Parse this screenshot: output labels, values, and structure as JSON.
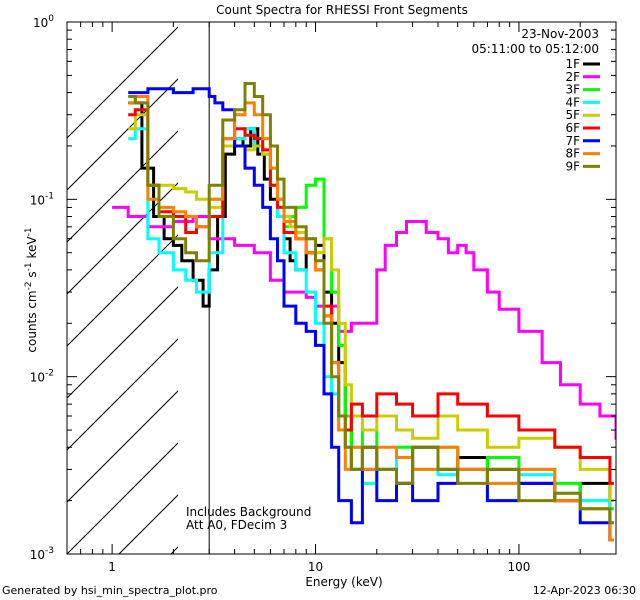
{
  "chart_data": {
    "type": "line",
    "title": "Count Spectra for RHESSI Front Segments",
    "xlabel": "Energy (keV)",
    "ylabel": "counts cm-2 s-1 keV-1",
    "xscale": "log",
    "yscale": "log",
    "xlim": [
      0.6,
      300
    ],
    "ylim": [
      0.001,
      1
    ],
    "x_ticks": [
      {
        "value": 1,
        "label": "1"
      },
      {
        "value": 10,
        "label": "10"
      },
      {
        "value": 100,
        "label": "100"
      }
    ],
    "y_ticks": [
      {
        "value": 1,
        "base": "10",
        "exp": "0"
      },
      {
        "value": 0.1,
        "base": "10",
        "exp": "-1"
      },
      {
        "value": 0.01,
        "base": "10",
        "exp": "-2"
      },
      {
        "value": 0.001,
        "base": "10",
        "exp": "-3"
      }
    ],
    "date": "23-Nov-2003",
    "time_range": "05:11:00 to 05:12:00",
    "hatched_below_keV": 3,
    "annotations": [
      "Includes Background",
      "Att A0, FDecim 3"
    ],
    "series": [
      {
        "name": "1F",
        "color": "#000000",
        "x": [
          1.2,
          1.4,
          1.6,
          1.8,
          2.0,
          2.2,
          2.5,
          2.8,
          3.0,
          3.3,
          3.6,
          4.0,
          4.4,
          4.8,
          5.2,
          5.6,
          6.0,
          6.5,
          7.0,
          7.5,
          8.0,
          9.0,
          10.0,
          11.0,
          12.0,
          13.0,
          14.0,
          15.0,
          17.0,
          20.0,
          25.0,
          30.0,
          40.0,
          50.0,
          70.0,
          100.0,
          150.0,
          200.0,
          280.0
        ],
        "y": [
          0.35,
          0.15,
          0.08,
          0.06,
          0.055,
          0.045,
          0.035,
          0.025,
          0.04,
          0.08,
          0.18,
          0.22,
          0.2,
          0.25,
          0.18,
          0.13,
          0.1,
          0.08,
          0.06,
          0.045,
          0.04,
          0.05,
          0.055,
          0.03,
          0.02,
          0.012,
          0.006,
          0.003,
          0.004,
          0.003,
          0.0025,
          0.004,
          0.003,
          0.0035,
          0.003,
          0.0025,
          0.002,
          0.0025,
          0.0012
        ]
      },
      {
        "name": "2F",
        "color": "#ff00ff",
        "x": [
          1.0,
          1.2,
          1.5,
          2.0,
          2.5,
          3.0,
          3.5,
          4.0,
          5.0,
          6.0,
          7.0,
          8.0,
          9.0,
          10.0,
          11.0,
          12.0,
          13.0,
          15.0,
          17.0,
          20.0,
          22.0,
          25.0,
          28.0,
          30.0,
          35.0,
          40.0,
          45.0,
          50.0,
          55.0,
          60.0,
          70.0,
          80.0,
          100.0,
          130.0,
          160.0,
          200.0,
          250.0,
          300.0
        ],
        "y": [
          0.09,
          0.08,
          0.07,
          0.075,
          0.08,
          0.06,
          0.06,
          0.055,
          0.05,
          0.035,
          0.03,
          0.03,
          0.028,
          0.025,
          0.022,
          0.025,
          0.018,
          0.02,
          0.02,
          0.04,
          0.055,
          0.065,
          0.075,
          0.075,
          0.065,
          0.06,
          0.05,
          0.055,
          0.05,
          0.04,
          0.03,
          0.024,
          0.018,
          0.012,
          0.009,
          0.007,
          0.006,
          0.0045
        ]
      },
      {
        "name": "3F",
        "color": "#00ff00",
        "x": [
          3.0,
          3.5,
          4.0,
          4.5,
          5.0,
          5.5,
          6.0,
          6.5,
          7.0,
          7.5,
          8.0,
          9.0,
          10.0,
          11.0,
          12.0,
          13.0,
          14.0,
          15.0,
          17.0,
          20.0,
          25.0,
          30.0,
          40.0,
          50.0,
          70.0,
          100.0,
          150.0,
          200.0,
          280.0
        ],
        "y": [
          0.1,
          0.2,
          0.22,
          0.25,
          0.2,
          0.18,
          0.12,
          0.08,
          0.07,
          0.08,
          0.09,
          0.12,
          0.13,
          0.06,
          0.03,
          0.015,
          0.006,
          0.004,
          0.005,
          0.003,
          0.004,
          0.003,
          0.004,
          0.003,
          0.0035,
          0.003,
          0.0025,
          0.002,
          0.0018
        ]
      },
      {
        "name": "4F",
        "color": "#00ffff",
        "x": [
          1.2,
          1.3,
          1.5,
          1.7,
          2.0,
          2.3,
          2.6,
          3.0,
          3.5,
          4.0,
          4.5,
          5.0,
          5.5,
          6.0,
          6.5,
          7.0,
          8.0,
          9.0,
          10.0,
          11.0,
          12.0,
          13.0,
          14.0,
          15.0,
          17.0,
          20.0,
          25.0,
          30.0,
          40.0,
          50.0,
          70.0,
          100.0,
          150.0,
          200.0,
          280.0
        ],
        "y": [
          0.22,
          0.25,
          0.06,
          0.05,
          0.04,
          0.035,
          0.03,
          0.05,
          0.2,
          0.22,
          0.25,
          0.2,
          0.18,
          0.12,
          0.08,
          0.05,
          0.04,
          0.03,
          0.02,
          0.01,
          0.008,
          0.005,
          0.004,
          0.003,
          0.0025,
          0.003,
          0.0035,
          0.003,
          0.0028,
          0.003,
          0.0025,
          0.0028,
          0.0022,
          0.002,
          0.0015
        ]
      },
      {
        "name": "5F",
        "color": "#cccc00",
        "x": [
          1.2,
          1.3,
          1.5,
          1.7,
          2.0,
          2.3,
          2.6,
          3.0,
          3.5,
          4.0,
          4.5,
          5.0,
          5.5,
          6.0,
          6.5,
          7.0,
          7.5,
          8.0,
          9.0,
          10.0,
          11.0,
          12.0,
          13.0,
          14.0,
          15.0,
          17.0,
          20.0,
          25.0,
          30.0,
          40.0,
          50.0,
          70.0,
          100.0,
          150.0,
          200.0,
          280.0
        ],
        "y": [
          0.25,
          0.3,
          0.12,
          0.12,
          0.115,
          0.11,
          0.1,
          0.09,
          0.2,
          0.2,
          0.19,
          0.2,
          0.18,
          0.15,
          0.1,
          0.08,
          0.07,
          0.065,
          0.06,
          0.05,
          0.06,
          0.04,
          0.02,
          0.009,
          0.006,
          0.005,
          0.006,
          0.005,
          0.0045,
          0.006,
          0.005,
          0.004,
          0.0045,
          0.004,
          0.003,
          0.002
        ]
      },
      {
        "name": "6F",
        "color": "#ff0000",
        "x": [
          1.2,
          1.3,
          1.5,
          1.7,
          2.0,
          2.3,
          2.6,
          3.0,
          3.5,
          4.0,
          4.5,
          5.0,
          5.5,
          6.0,
          6.5,
          7.0,
          8.0,
          9.0,
          10.0,
          11.0,
          12.0,
          13.0,
          14.0,
          15.0,
          17.0,
          20.0,
          25.0,
          30.0,
          40.0,
          50.0,
          70.0,
          100.0,
          150.0,
          200.0,
          280.0
        ],
        "y": [
          0.3,
          0.32,
          0.12,
          0.085,
          0.08,
          0.065,
          0.07,
          0.08,
          0.22,
          0.25,
          0.23,
          0.22,
          0.19,
          0.12,
          0.09,
          0.065,
          0.06,
          0.05,
          0.04,
          0.025,
          0.012,
          0.006,
          0.005,
          0.007,
          0.006,
          0.008,
          0.007,
          0.006,
          0.008,
          0.007,
          0.006,
          0.005,
          0.004,
          0.0035,
          0.0025
        ]
      },
      {
        "name": "7F",
        "color": "#0000ff",
        "x": [
          1.2,
          1.5,
          2.0,
          2.5,
          3.0,
          3.2,
          3.5,
          4.0,
          4.5,
          5.0,
          5.5,
          6.0,
          6.5,
          7.0,
          8.0,
          9.0,
          10.0,
          11.0,
          12.0,
          13.0,
          15.0,
          17.0,
          20.0,
          25.0,
          30.0,
          40.0,
          50.0,
          70.0,
          100.0,
          150.0,
          200.0,
          280.0
        ],
        "y": [
          0.4,
          0.42,
          0.4,
          0.42,
          0.38,
          0.35,
          0.32,
          0.2,
          0.15,
          0.12,
          0.09,
          0.06,
          0.045,
          0.025,
          0.02,
          0.018,
          0.015,
          0.008,
          0.004,
          0.002,
          0.0015,
          0.003,
          0.002,
          0.0025,
          0.002,
          0.0025,
          0.003,
          0.002,
          0.0025,
          0.002,
          0.0015,
          0.0012
        ]
      },
      {
        "name": "8F",
        "color": "#ff8000",
        "x": [
          1.2,
          1.3,
          1.5,
          1.7,
          2.0,
          2.3,
          2.6,
          3.0,
          3.5,
          4.0,
          4.5,
          5.0,
          5.5,
          6.0,
          6.5,
          7.0,
          8.0,
          9.0,
          10.0,
          11.0,
          12.0,
          13.0,
          14.0,
          15.0,
          17.0,
          20.0,
          25.0,
          30.0,
          40.0,
          50.0,
          70.0,
          100.0,
          150.0,
          200.0,
          280.0
        ],
        "y": [
          0.35,
          0.38,
          0.1,
          0.09,
          0.085,
          0.08,
          0.07,
          0.1,
          0.22,
          0.3,
          0.35,
          0.3,
          0.22,
          0.15,
          0.1,
          0.075,
          0.06,
          0.05,
          0.04,
          0.022,
          0.012,
          0.005,
          0.003,
          0.004,
          0.003,
          0.004,
          0.0035,
          0.003,
          0.004,
          0.003,
          0.0025,
          0.003,
          0.002,
          0.0018,
          0.0012
        ]
      },
      {
        "name": "9F",
        "color": "#808000",
        "x": [
          1.2,
          1.3,
          1.5,
          1.7,
          2.0,
          2.3,
          2.6,
          3.0,
          3.5,
          4.0,
          4.5,
          5.0,
          5.5,
          6.0,
          6.5,
          7.0,
          8.0,
          9.0,
          10.0,
          11.0,
          12.0,
          13.0,
          14.0,
          15.0,
          17.0,
          20.0,
          25.0,
          30.0,
          40.0,
          50.0,
          70.0,
          100.0,
          150.0,
          200.0,
          280.0
        ],
        "y": [
          0.38,
          0.35,
          0.12,
          0.08,
          0.06,
          0.05,
          0.045,
          0.12,
          0.28,
          0.32,
          0.45,
          0.38,
          0.3,
          0.2,
          0.13,
          0.09,
          0.07,
          0.06,
          0.045,
          0.02,
          0.01,
          0.006,
          0.004,
          0.003,
          0.004,
          0.003,
          0.0025,
          0.004,
          0.003,
          0.0025,
          0.003,
          0.002,
          0.0022,
          0.0018,
          0.0015
        ]
      }
    ]
  },
  "footer": {
    "generated_by": "Generated by hsi_min_spectra_plot.pro",
    "date": "12-Apr-2023 06:30"
  }
}
